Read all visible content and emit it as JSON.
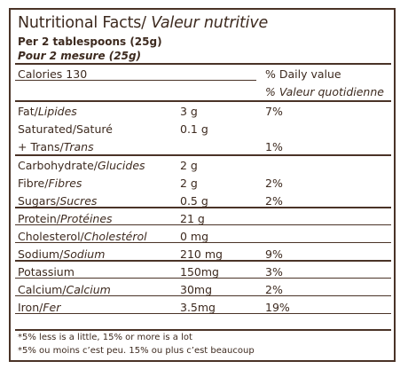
{
  "header": {
    "title_en": "Nutritional Facts/",
    "title_fr": "Valeur nutritive",
    "serving_en": "Per 2 tablespoons (25g)",
    "serving_fr": "Pour 2 mesure (25g)"
  },
  "calories": {
    "label": "Calories  130",
    "dv_en": "% Daily value",
    "dv_fr": "% Valeur quotidienne"
  },
  "rows": [
    {
      "en": "Fat/",
      "fr": "Lipides",
      "amount": "3 g",
      "dv": "7%"
    },
    {
      "en": "Saturated/Saturé",
      "fr": "",
      "amount": "0.1 g",
      "dv": ""
    },
    {
      "en": " + Trans/",
      "fr": "Trans",
      "amount": "",
      "dv": "1%"
    },
    {
      "en": "Carbohydrate/",
      "fr": "Glucides",
      "amount": "2 g",
      "dv": ""
    },
    {
      "en": "Fibre/",
      "fr": "Fibres",
      "amount": "2 g",
      "dv": "2%"
    },
    {
      "en": "Sugars/",
      "fr": "Sucres",
      "amount": "0.5 g",
      "dv": "2%"
    },
    {
      "en": "Protein/",
      "fr": "Protéines",
      "amount": "21 g",
      "dv": ""
    },
    {
      "en": "Cholesterol/",
      "fr": "Cholestérol",
      "amount": "0 mg",
      "dv": ""
    },
    {
      "en": "Sodium/",
      "fr": "Sodium",
      "amount": "210 mg",
      "dv": "9%"
    },
    {
      "en": "Potassium",
      "fr": "",
      "amount": "150mg",
      "dv": "3%"
    },
    {
      "en": "Calcium/",
      "fr": "Calcium",
      "amount": "30mg",
      "dv": "2%"
    },
    {
      "en": "Iron/",
      "fr": "Fer",
      "amount": "3.5mg",
      "dv": "19%"
    }
  ],
  "footnotes": {
    "en": "*5% less is a little, 15% or more is a lot",
    "fr": "*5% ou moins c’est peu. 15% ou plus c’est beaucoup"
  }
}
